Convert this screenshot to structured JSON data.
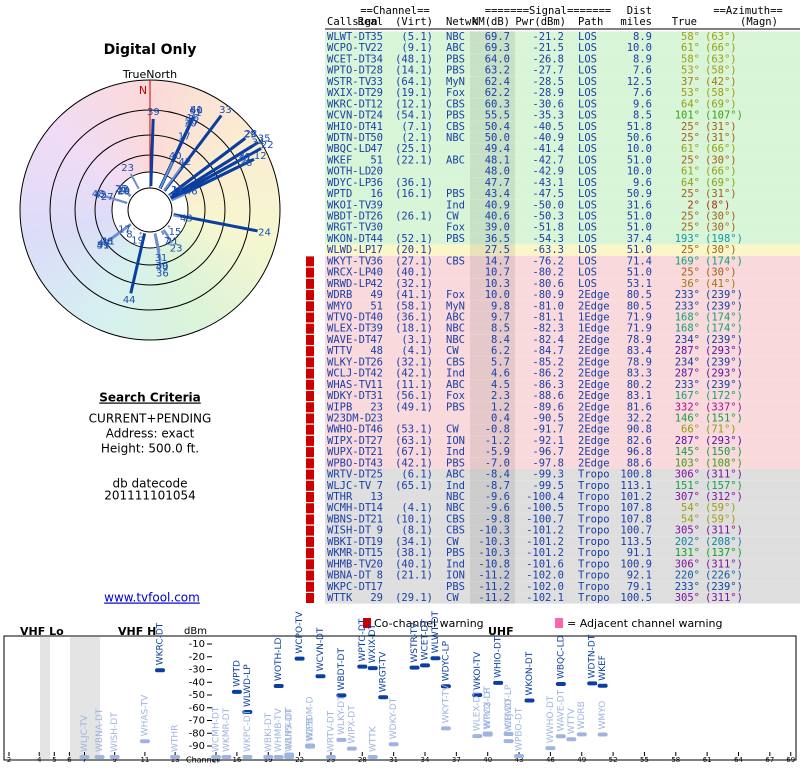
{
  "left": {
    "title": "Digital Only",
    "north_label": "TrueNorth",
    "north_mark": "N",
    "criteria_title": "Search Criteria",
    "criteria": [
      "CURRENT+PENDING",
      "Address: exact",
      "Height: 500.0 ft."
    ],
    "datecode_label": "db datecode",
    "datecode": "201111101054",
    "link": "www.tvfool.com"
  },
  "table": {
    "group_headers": [
      "==Channel==",
      "=======Signal=======",
      "Dist",
      "==Azimuth=="
    ],
    "columns": [
      "Callsign",
      "Real",
      "(Virt)",
      "Netwk",
      "NM(dB)",
      "Pwr(dBm)",
      "Path",
      "miles",
      "True",
      "(Magn)"
    ],
    "rows": [
      [
        "WLWT-DT",
        "35",
        "(5.1)",
        "NBC",
        "69.7",
        "-21.2",
        "LOS",
        "8.9",
        "58°",
        "(63°)"
      ],
      [
        "WCPO-TV",
        "22",
        "(9.1)",
        "ABC",
        "69.3",
        "-21.5",
        "LOS",
        "10.0",
        "61°",
        "(66°)"
      ],
      [
        "WCET-DT",
        "34",
        "(48.1)",
        "PBS",
        "64.0",
        "-26.8",
        "LOS",
        "8.9",
        "58°",
        "(63°)"
      ],
      [
        "WPTO-DT",
        "28",
        "(14.1)",
        "PBS",
        "63.2",
        "-27.7",
        "LOS",
        "7.6",
        "53°",
        "(58°)"
      ],
      [
        "WSTR-TV",
        "33",
        "(64.1)",
        "MyN",
        "62.4",
        "-28.5",
        "LOS",
        "12.5",
        "37°",
        "(42°)"
      ],
      [
        "WXIX-DT",
        "29",
        "(19.1)",
        "Fox",
        "62.2",
        "-28.9",
        "LOS",
        "7.6",
        "53°",
        "(58°)"
      ],
      [
        "WKRC-DT",
        "12",
        "(12.1)",
        "CBS",
        "60.3",
        "-30.6",
        "LOS",
        "9.6",
        "64°",
        "(69°)"
      ],
      [
        "WCVN-DT",
        "24",
        "(54.1)",
        "PBS",
        "55.5",
        "-35.3",
        "LOS",
        "8.5",
        "101°",
        "(107°)"
      ],
      [
        "WHIO-DT",
        "41",
        "(7.1)",
        "CBS",
        "50.4",
        "-40.5",
        "LOS",
        "51.8",
        "25°",
        "(31°)"
      ],
      [
        "WDTN-DT",
        "50",
        "(2.1)",
        "NBC",
        "50.0",
        "-40.9",
        "LOS",
        "50.6",
        "25°",
        "(31°)"
      ],
      [
        "WBQC-LD",
        "47",
        "(25.1)",
        null,
        "49.4",
        "-41.4",
        "LOS",
        "10.0",
        "61°",
        "(66°)"
      ],
      [
        "WKEF",
        "51",
        "(22.1)",
        "ABC",
        "48.1",
        "-42.7",
        "LOS",
        "51.0",
        "25°",
        "(30°)"
      ],
      [
        "WOTH-LD",
        "20",
        null,
        null,
        "48.0",
        "-42.9",
        "LOS",
        "10.0",
        "61°",
        "(66°)"
      ],
      [
        "WDYC-LP",
        "36",
        "(36.1)",
        null,
        "47.7",
        "-43.1",
        "LOS",
        "9.6",
        "64°",
        "(69°)"
      ],
      [
        "WPTD",
        "16",
        "(16.1)",
        "PBS",
        "43.4",
        "-47.5",
        "LOS",
        "50.9",
        "25°",
        "(31°)"
      ],
      [
        "WKOI-TV",
        "39",
        null,
        "Ind",
        "40.9",
        "-50.0",
        "LOS",
        "31.6",
        "2°",
        "(8°)"
      ],
      [
        "WBDT-DT",
        "26",
        "(26.1)",
        "CW",
        "40.6",
        "-50.3",
        "LOS",
        "51.0",
        "25°",
        "(30°)"
      ],
      [
        "WRGT-TV",
        "30",
        null,
        "Fox",
        "39.0",
        "-51.8",
        "LOS",
        "51.0",
        "25°",
        "(30°)"
      ],
      [
        "WKON-DT",
        "44",
        "(52.1)",
        "PBS",
        "36.5",
        "-54.3",
        "LOS",
        "37.4",
        "193°",
        "(198°)"
      ],
      [
        "WLWD-LP",
        "17",
        "(20.1)",
        null,
        "27.5",
        "-63.3",
        "LOS",
        "51.0",
        "25°",
        "(30°)"
      ],
      [
        "WKYT-TV",
        "36",
        "(27.1)",
        "CBS",
        "14.7",
        "-76.2",
        "LOS",
        "71.4",
        "169°",
        "(174°)"
      ],
      [
        "WRCX-LP",
        "40",
        "(40.1)",
        null,
        "10.7",
        "-80.2",
        "LOS",
        "51.0",
        "25°",
        "(30°)"
      ],
      [
        "WRWD-LP",
        "42",
        "(32.1)",
        null,
        "10.3",
        "-80.6",
        "LOS",
        "53.1",
        "36°",
        "(41°)"
      ],
      [
        "WDRB",
        "49",
        "(41.1)",
        "Fox",
        "10.0",
        "-80.9",
        "2Edge",
        "80.5",
        "233°",
        "(239°)"
      ],
      [
        "WMYO",
        "51",
        "(58.1)",
        "MyN",
        "9.8",
        "-81.0",
        "2Edge",
        "80.5",
        "233°",
        "(239°)"
      ],
      [
        "WTVQ-DT",
        "40",
        "(36.1)",
        "ABC",
        "9.7",
        "-81.1",
        "1Edge",
        "71.9",
        "168°",
        "(174°)"
      ],
      [
        "WLEX-DT",
        "39",
        "(18.1)",
        "NBC",
        "8.5",
        "-82.3",
        "1Edge",
        "71.9",
        "168°",
        "(174°)"
      ],
      [
        "WAVE-DT",
        "47",
        "(3.1)",
        "NBC",
        "8.4",
        "-82.4",
        "2Edge",
        "78.9",
        "234°",
        "(239°)"
      ],
      [
        "WTTV",
        "48",
        "(4.1)",
        "CW",
        "6.2",
        "-84.7",
        "2Edge",
        "83.4",
        "287°",
        "(293°)"
      ],
      [
        "WLKY-DT",
        "26",
        "(32.1)",
        "CBS",
        "5.7",
        "-85.2",
        "2Edge",
        "78.9",
        "234°",
        "(239°)"
      ],
      [
        "WCLJ-DT",
        "42",
        "(42.1)",
        "Ind",
        "4.6",
        "-86.2",
        "2Edge",
        "83.3",
        "287°",
        "(293°)"
      ],
      [
        "WHAS-TV",
        "11",
        "(11.1)",
        "ABC",
        "4.5",
        "-86.3",
        "2Edge",
        "80.2",
        "233°",
        "(239°)"
      ],
      [
        "WDKY-DT",
        "31",
        "(56.1)",
        "Fox",
        "2.3",
        "-88.6",
        "2Edge",
        "83.1",
        "167°",
        "(172°)"
      ],
      [
        "WIPB",
        "23",
        "(49.1)",
        "PBS",
        "1.2",
        "-89.6",
        "2Edge",
        "81.6",
        "332°",
        "(337°)"
      ],
      [
        "W23DM-D",
        "23",
        null,
        null,
        "0.4",
        "-90.5",
        "2Edge",
        "32.2",
        "146°",
        "(151°)"
      ],
      [
        "WWHO-DT",
        "46",
        "(53.1)",
        "CW",
        "-0.8",
        "-91.7",
        "2Edge",
        "90.8",
        "66°",
        "(71°)"
      ],
      [
        "WIPX-DT",
        "27",
        "(63.1)",
        "ION",
        "-1.2",
        "-92.1",
        "2Edge",
        "82.6",
        "287°",
        "(293°)"
      ],
      [
        "WUPX-DT",
        "21",
        "(67.1)",
        "Ind",
        "-5.9",
        "-96.7",
        "2Edge",
        "96.8",
        "145°",
        "(150°)"
      ],
      [
        "WPBO-DT",
        "43",
        "(42.1)",
        "PBS",
        "-7.0",
        "-97.8",
        "2Edge",
        "88.6",
        "103°",
        "(108°)"
      ],
      [
        "WRTV-DT",
        "25",
        "(6.1)",
        "ABC",
        "-8.4",
        "-99.3",
        "Tropo",
        "100.8",
        "306°",
        "(311°)"
      ],
      [
        "WLJC-TV",
        "7",
        "(65.1)",
        "Ind",
        "-8.7",
        "-99.5",
        "Tropo",
        "113.1",
        "151°",
        "(157°)"
      ],
      [
        "WTHR",
        "13",
        null,
        "NBC",
        "-9.6",
        "-100.4",
        "Tropo",
        "101.2",
        "307°",
        "(312°)"
      ],
      [
        "WCMH-DT",
        "14",
        "(4.1)",
        "NBC",
        "-9.6",
        "-100.5",
        "Tropo",
        "107.8",
        "54°",
        "(59°)"
      ],
      [
        "WBNS-DT",
        "21",
        "(10.1)",
        "CBS",
        "-9.8",
        "-100.7",
        "Tropo",
        "107.8",
        "54°",
        "(59°)"
      ],
      [
        "WISH-DT",
        "9",
        "(8.1)",
        "CBS",
        "-10.3",
        "-101.2",
        "Tropo",
        "100.7",
        "305°",
        "(311°)"
      ],
      [
        "WBKI-DT",
        "19",
        "(34.1)",
        "CW",
        "-10.3",
        "-101.2",
        "Tropo",
        "113.5",
        "202°",
        "(208°)"
      ],
      [
        "WKMR-DT",
        "15",
        "(38.1)",
        "PBS",
        "-10.3",
        "-101.2",
        "Tropo",
        "91.1",
        "131°",
        "(137°)"
      ],
      [
        "WHMB-TV",
        "20",
        "(40.1)",
        "Ind",
        "-10.8",
        "-101.6",
        "Tropo",
        "100.9",
        "306°",
        "(311°)"
      ],
      [
        "WBNA-DT",
        "8",
        "(21.1)",
        "ION",
        "-11.2",
        "-102.0",
        "Tropo",
        "92.1",
        "220°",
        "(226°)"
      ],
      [
        "WKPC-DT",
        "17",
        null,
        "PBS",
        "-11.2",
        "-102.0",
        "Tropo",
        "79.1",
        "233°",
        "(239°)"
      ],
      [
        "WTTK",
        "29",
        "(29.1)",
        "CW",
        "-11.2",
        "-102.1",
        "Tropo",
        "100.5",
        "305°",
        "(311°)"
      ]
    ],
    "row_colors": [
      "#d8f5d8",
      "#fbf6c8",
      "#f9d9dc",
      "#dedede"
    ]
  },
  "chart_data": {
    "type": "spectrum",
    "bands": [
      "VHF Lo",
      "VHF H",
      "UHF"
    ],
    "y_label": "dBm",
    "x_label": "Channel",
    "ylim": [
      -5,
      -95
    ],
    "yticks": [
      -10,
      -20,
      -30,
      -40,
      -50,
      -60,
      -70,
      -80,
      -90
    ],
    "xticks": [
      2,
      4,
      5,
      6,
      7,
      9,
      11,
      13,
      14,
      16,
      19,
      22,
      25,
      28,
      31,
      34,
      37,
      40,
      43,
      46,
      49,
      52,
      55,
      58,
      61,
      64,
      67,
      69
    ],
    "legend": [
      "Co-channel warning",
      "= Adjacent channel warning"
    ]
  }
}
